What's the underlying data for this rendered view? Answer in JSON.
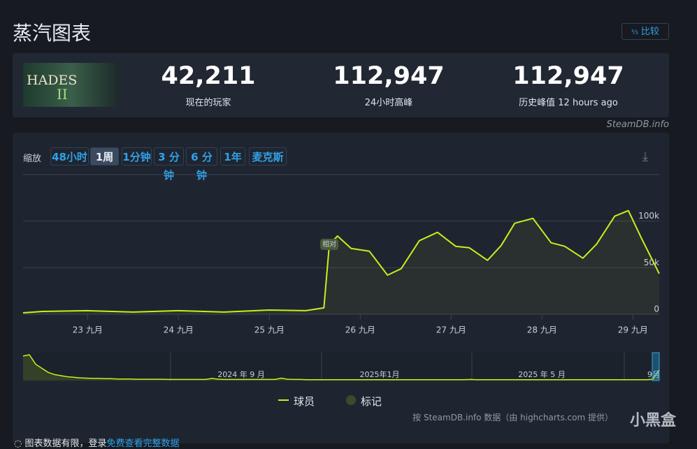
{
  "header": {
    "title": "蒸汽图表",
    "compare": "比较"
  },
  "game": {
    "logo": "HADES",
    "numeral": "II"
  },
  "stats": [
    {
      "value": "42,211",
      "label": "现在的玩家"
    },
    {
      "value": "112,947",
      "label": "24小时高峰"
    },
    {
      "value": "112,947",
      "label": "历史峰值 12 hours ago"
    }
  ],
  "source": "SteamDB.info",
  "zoom": {
    "label": "缩放",
    "options": [
      "48小时",
      "1周",
      "1分钟",
      "3 分钟",
      "6 分钟",
      "1年",
      "麦克斯"
    ],
    "selected": 1
  },
  "chart_data": {
    "type": "line",
    "x": [
      22.29,
      22.5,
      23.0,
      23.5,
      24.0,
      24.5,
      25.0,
      25.4,
      25.6,
      25.66,
      25.75,
      25.9,
      26.1,
      26.3,
      26.45,
      26.65,
      26.85,
      27.05,
      27.2,
      27.4,
      27.55,
      27.7,
      27.9,
      28.1,
      28.25,
      28.45,
      28.6,
      28.8,
      28.95,
      29.1,
      29.29
    ],
    "series": [
      {
        "name": "球员",
        "color": "#c5f01c",
        "values": [
          1500,
          3000,
          3800,
          2300,
          3800,
          2300,
          4500,
          3800,
          6800,
          75000,
          84000,
          70700,
          67700,
          42000,
          48900,
          79000,
          88000,
          73000,
          71400,
          57900,
          73700,
          97700,
          103000,
          76700,
          73000,
          60200,
          75200,
          105300,
          111300,
          80500,
          43600
        ]
      }
    ],
    "markers_legend": "标记",
    "annotation": "相对",
    "xlim": [
      22.29,
      29.29
    ],
    "xticks": [
      {
        "value": 23,
        "label": "23 九月"
      },
      {
        "value": 24,
        "label": "24 九月"
      },
      {
        "value": 25,
        "label": "25 九月"
      },
      {
        "value": 26,
        "label": "26 九月"
      },
      {
        "value": 27,
        "label": "27 九月"
      },
      {
        "value": 28,
        "label": "28 九月"
      },
      {
        "value": 29,
        "label": "29 九月"
      }
    ],
    "ylim": [
      0,
      150000
    ],
    "yticks": [
      0,
      {
        "value": 50000,
        "label": "50k"
      },
      {
        "value": 100000,
        "label": "100k"
      },
      {
        "value": 150000,
        "label": ""
      }
    ],
    "grid": true
  },
  "navigator": {
    "labels": [
      "2024 年 9 月",
      "2025年1月",
      "2025 年 5 月",
      "9月"
    ],
    "values": [
      90,
      95,
      60,
      45,
      30,
      22,
      18,
      14,
      12,
      10,
      9,
      8,
      8,
      7,
      7,
      6,
      6,
      6,
      5,
      5,
      5,
      5,
      5,
      4,
      4,
      4,
      4,
      4,
      4,
      4,
      8,
      5,
      4,
      4,
      4,
      4,
      4,
      4,
      4,
      4,
      4,
      9,
      5,
      4,
      4,
      3,
      3,
      3,
      3,
      3,
      3,
      3,
      3,
      3,
      3,
      3,
      3,
      3,
      3,
      3,
      3,
      3,
      3,
      3,
      3,
      3,
      3,
      3,
      3,
      3,
      3,
      4,
      3,
      3,
      3,
      3,
      3,
      3,
      3,
      3,
      3,
      3,
      3,
      3,
      3,
      3,
      3,
      3,
      3,
      3,
      3,
      3,
      3,
      3,
      3,
      3,
      3,
      3,
      3,
      3,
      5,
      40
    ]
  },
  "credits": "按 SteamDB.info 数据（由 highcharts.com 提供）",
  "watermark": "小黑盒",
  "footer": {
    "notice": "图表数据有限，登录",
    "link": "免费查看完整数据"
  }
}
